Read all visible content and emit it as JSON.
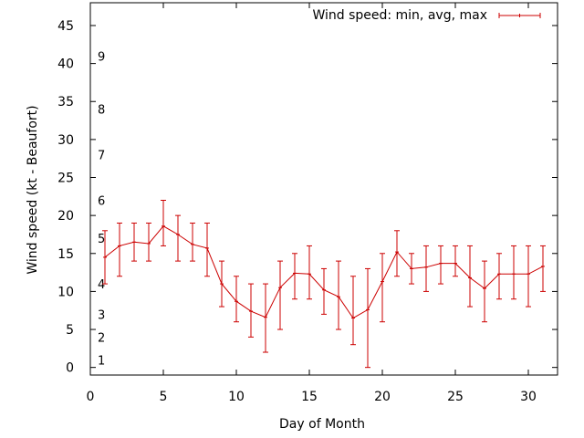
{
  "chart_data": {
    "type": "line",
    "title": "",
    "xlabel": "Day of Month",
    "ylabel": "Wind speed (kt - Beaufort)",
    "xlim": [
      0,
      32
    ],
    "ylim": [
      -1,
      48
    ],
    "xticks": [
      0,
      5,
      10,
      15,
      20,
      25,
      30
    ],
    "yticks": [
      0,
      5,
      10,
      15,
      20,
      25,
      30,
      35,
      40,
      45
    ],
    "grid": false,
    "legend_position": "top-right",
    "beaufort_scale": [
      {
        "label": "1",
        "y": 1
      },
      {
        "label": "2",
        "y": 4
      },
      {
        "label": "3",
        "y": 7
      },
      {
        "label": "4",
        "y": 11
      },
      {
        "label": "5",
        "y": 17
      },
      {
        "label": "6",
        "y": 22
      },
      {
        "label": "7",
        "y": 28
      },
      {
        "label": "8",
        "y": 34
      },
      {
        "label": "9",
        "y": 41
      }
    ],
    "series": [
      {
        "name": "Wind speed: min, avg, max",
        "color": "#cc0000",
        "x": [
          1,
          2,
          3,
          4,
          5,
          6,
          7,
          8,
          9,
          10,
          11,
          12,
          13,
          14,
          15,
          16,
          17,
          18,
          19,
          20,
          21,
          22,
          23,
          24,
          25,
          26,
          27,
          28,
          29,
          30,
          31
        ],
        "min": [
          11,
          12,
          14,
          14,
          16,
          14,
          14,
          12,
          8,
          6,
          4,
          2,
          5,
          9,
          9,
          7,
          5,
          3,
          0,
          6,
          12,
          11,
          10,
          11,
          12,
          8,
          6,
          9,
          9,
          8,
          10
        ],
        "avg": [
          14.5,
          16,
          16.5,
          16.3,
          18.6,
          17.5,
          16.2,
          15.7,
          11,
          8.7,
          7.4,
          6.6,
          10.5,
          12.4,
          12.3,
          10.2,
          9.3,
          6.5,
          7.6,
          11.3,
          15.2,
          13,
          13.2,
          13.7,
          13.7,
          11.8,
          10.4,
          12.3,
          12.3,
          12.3,
          13.3
        ],
        "max": [
          18,
          19,
          19,
          19,
          22,
          20,
          19,
          19,
          14,
          12,
          11,
          11,
          14,
          15,
          16,
          13,
          14,
          12,
          13,
          15,
          18,
          15,
          16,
          16,
          16,
          16,
          14,
          15,
          16,
          16,
          16
        ]
      }
    ]
  }
}
